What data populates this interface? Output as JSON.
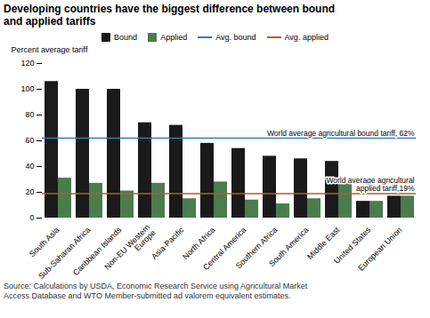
{
  "chart_data": {
    "type": "bar",
    "title": "Developing countries have the biggest difference between bound\nand applied tariffs",
    "ylabel": "Percent average tariff",
    "categories": [
      "South Asia",
      "Sub-Saharan Africa",
      "Caribbean Islands",
      "Non-EU Western\nEurope",
      "Asia-Pacific",
      "North Africa",
      "Central America",
      "Southern Africa",
      "South America",
      "Middle East",
      "United States",
      "European Union"
    ],
    "series": [
      {
        "name": "Bound",
        "color": "#1a1a1a",
        "values": [
          106,
          100,
          100,
          74,
          72,
          58,
          54,
          48,
          46,
          44,
          13,
          17
        ]
      },
      {
        "name": "Applied",
        "color": "#4a7c4e",
        "values": [
          31,
          27,
          21,
          27,
          15,
          28,
          14,
          11,
          15,
          27,
          13,
          17
        ]
      }
    ],
    "reference_lines": [
      {
        "name": "Avg. bound",
        "value": 62,
        "color": "#3777b8",
        "annotation": "World average agricultural bound tariff, 62%"
      },
      {
        "name": "Avg. applied",
        "value": 19,
        "color": "#b85c1e",
        "annotation": "World average agricultural\napplied tariff,19%"
      }
    ],
    "ylim": [
      0,
      120
    ],
    "yticks": [
      0,
      20,
      40,
      60,
      80,
      100,
      120
    ],
    "legend": "top",
    "source": "Source:  Calculations by USDA, Economic Research Service using Agricultural Market\nAccess Database and WTO Member-submitted ad valorem equivalent estimates."
  }
}
